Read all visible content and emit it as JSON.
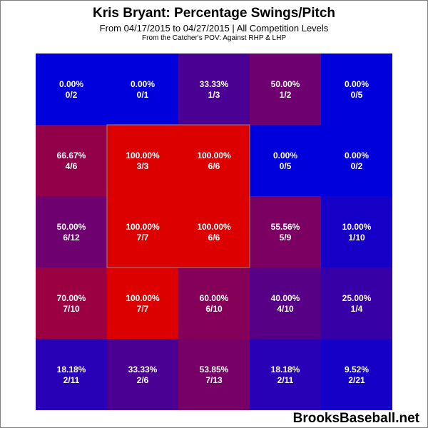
{
  "header": {
    "title": "Kris Bryant: Percentage Swings/Pitch",
    "subtitle": "From 04/17/2015 to 04/27/2015 | All Competition Levels",
    "subtitle2": "From the Catcher's POV:  Against RHP & LHP"
  },
  "footer": {
    "watermark": "BrooksBaseball.net"
  },
  "colors": {
    "low": "#0000dd",
    "high": "#dd0000",
    "strike_zone_border": "#8a8a8a"
  },
  "chart_data": {
    "type": "heatmap",
    "title": "Kris Bryant: Percentage Swings/Pitch",
    "rows": 5,
    "cols": 5,
    "strike_zone": {
      "rows": [
        1,
        3
      ],
      "cols": [
        1,
        3
      ]
    },
    "cells": [
      [
        {
          "pct": "0.00%",
          "frac": "0/2",
          "value": 0.0
        },
        {
          "pct": "0.00%",
          "frac": "0/1",
          "value": 0.0
        },
        {
          "pct": "33.33%",
          "frac": "1/3",
          "value": 33.33
        },
        {
          "pct": "50.00%",
          "frac": "1/2",
          "value": 50.0
        },
        {
          "pct": "0.00%",
          "frac": "0/5",
          "value": 0.0
        }
      ],
      [
        {
          "pct": "66.67%",
          "frac": "4/6",
          "value": 66.67
        },
        {
          "pct": "100.00%",
          "frac": "3/3",
          "value": 100.0
        },
        {
          "pct": "100.00%",
          "frac": "6/6",
          "value": 100.0
        },
        {
          "pct": "0.00%",
          "frac": "0/5",
          "value": 0.0
        },
        {
          "pct": "0.00%",
          "frac": "0/2",
          "value": 0.0
        }
      ],
      [
        {
          "pct": "50.00%",
          "frac": "6/12",
          "value": 50.0
        },
        {
          "pct": "100.00%",
          "frac": "7/7",
          "value": 100.0
        },
        {
          "pct": "100.00%",
          "frac": "6/6",
          "value": 100.0
        },
        {
          "pct": "55.56%",
          "frac": "5/9",
          "value": 55.56
        },
        {
          "pct": "10.00%",
          "frac": "1/10",
          "value": 10.0
        }
      ],
      [
        {
          "pct": "70.00%",
          "frac": "7/10",
          "value": 70.0
        },
        {
          "pct": "100.00%",
          "frac": "7/7",
          "value": 100.0
        },
        {
          "pct": "60.00%",
          "frac": "6/10",
          "value": 60.0
        },
        {
          "pct": "40.00%",
          "frac": "4/10",
          "value": 40.0
        },
        {
          "pct": "25.00%",
          "frac": "1/4",
          "value": 25.0
        }
      ],
      [
        {
          "pct": "18.18%",
          "frac": "2/11",
          "value": 18.18
        },
        {
          "pct": "33.33%",
          "frac": "2/6",
          "value": 33.33
        },
        {
          "pct": "53.85%",
          "frac": "7/13",
          "value": 53.85
        },
        {
          "pct": "18.18%",
          "frac": "2/11",
          "value": 18.18
        },
        {
          "pct": "9.52%",
          "frac": "2/21",
          "value": 9.52
        }
      ]
    ]
  }
}
